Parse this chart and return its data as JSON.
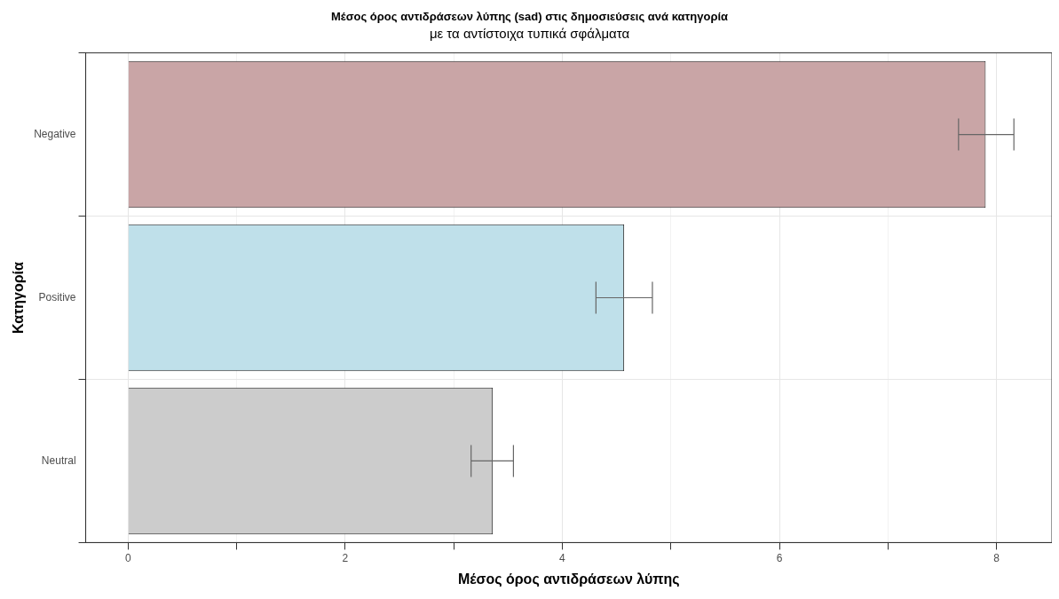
{
  "chart_data": {
    "type": "bar",
    "orientation": "horizontal",
    "title": "Μέσος όρος αντιδράσεων λύπης (sad) στις δημοσιεύσεις ανά κατηγορία",
    "subtitle": "με τα αντίστοιχα τυπικά σφάλματα",
    "xlabel": "Μέσος όρος αντιδράσεων λύπης",
    "ylabel": "Κατηγορία",
    "categories": [
      "Negative",
      "Positive",
      "Neutral"
    ],
    "values": [
      7.9,
      4.57,
      3.36
    ],
    "colors": [
      "#c9a5a6",
      "#bfe0ea",
      "#cccccc"
    ],
    "errors": [
      [
        7.65,
        8.16
      ],
      [
        4.31,
        4.83
      ],
      [
        3.16,
        3.55
      ]
    ],
    "xlim": [
      -0.39,
      8.51
    ],
    "xticks": [
      0,
      {
        "value": 1,
        "label": null
      },
      2,
      {
        "value": 3,
        "label": null
      },
      4,
      {
        "value": 5,
        "label": null
      },
      6,
      {
        "value": 7,
        "label": null
      },
      8
    ],
    "grid": true,
    "legend": false
  }
}
